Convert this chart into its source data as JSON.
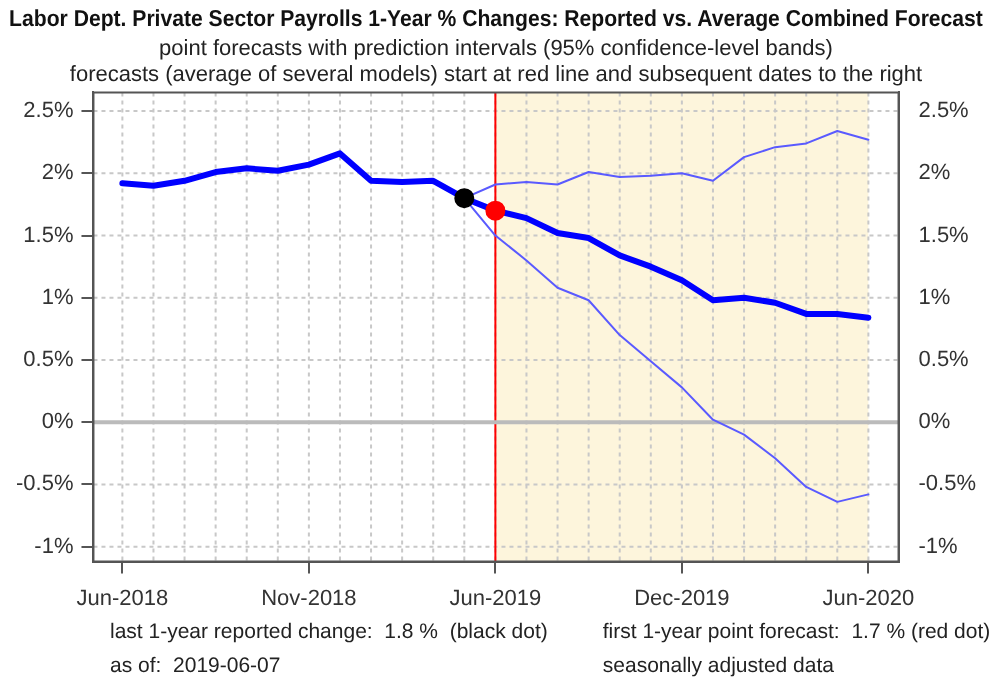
{
  "chart_data": {
    "type": "line",
    "title": "Labor Dept. Private Sector Payrolls 1-Year % Changes: Reported vs. Average Combined Forecast",
    "subtitle": "point forecasts with prediction intervals (95% confidence-level bands)\nforecasts (average of several models) start at red line and subsequent dates to the right",
    "categories": [
      "Jun-2018",
      null,
      null,
      null,
      null,
      null,
      "Nov-2018",
      null,
      null,
      null,
      null,
      null,
      "Jun-2019",
      null,
      null,
      null,
      null,
      null,
      "Dec-2019",
      null,
      null,
      null,
      null,
      null,
      "Jun-2020"
    ],
    "series": [
      {
        "color": "#0000ff",
        "values": [
          1.92,
          1.9,
          1.94,
          2.01,
          2.04,
          2.02,
          2.07,
          2.16,
          1.94,
          1.93,
          1.94,
          1.8,
          1.7,
          1.64,
          1.52,
          1.48,
          1.34,
          1.25,
          1.14,
          0.98,
          1.0,
          0.96,
          0.87,
          0.87,
          0.84
        ]
      },
      {
        "color": "#5a5aff",
        "values": [
          null,
          null,
          null,
          null,
          null,
          null,
          null,
          null,
          null,
          null,
          null,
          1.8,
          1.91,
          1.93,
          1.91,
          2.01,
          1.97,
          1.98,
          2.0,
          1.94,
          2.13,
          2.21,
          2.24,
          2.34,
          2.27
        ]
      },
      {
        "color": "#5a5aff",
        "values": [
          null,
          null,
          null,
          null,
          null,
          null,
          null,
          null,
          null,
          null,
          null,
          1.8,
          1.5,
          1.3,
          1.08,
          0.98,
          0.7,
          0.49,
          0.28,
          0.02,
          -0.1,
          -0.29,
          -0.52,
          -0.64,
          -0.58
        ]
      },
      {
        "type": "scatter",
        "marker": "circle",
        "color": "#000000",
        "values": [
          null,
          null,
          null,
          null,
          null,
          null,
          null,
          null,
          null,
          null,
          null,
          1.8,
          null,
          null,
          null,
          null,
          null,
          null,
          null,
          null,
          null,
          null,
          null,
          null,
          null
        ]
      },
      {
        "type": "scatter",
        "marker": "circle",
        "color": "#ff0000",
        "values": [
          null,
          null,
          null,
          null,
          null,
          null,
          null,
          null,
          null,
          null,
          null,
          null,
          1.7,
          null,
          null,
          null,
          null,
          null,
          null,
          null,
          null,
          null,
          null,
          null,
          null
        ]
      }
    ],
    "ylim": [
      -1.12,
      2.65
    ],
    "yticks": [
      {
        "value": -1,
        "label": "-1%"
      },
      {
        "value": -0.5,
        "label": "-0.5%"
      },
      {
        "value": 0,
        "label": "0%"
      },
      {
        "value": 0.5,
        "label": "0.5%"
      },
      {
        "value": 1,
        "label": "1%"
      },
      {
        "value": 1.5,
        "label": "1.5%"
      },
      {
        "value": 2,
        "label": "2%"
      },
      {
        "value": 2.5,
        "label": "2.5%"
      }
    ],
    "y2lim": [
      -1.12,
      2.65
    ],
    "y2ticks": [
      {
        "value": -1,
        "label": "-1%"
      },
      {
        "value": -0.5,
        "label": "-0.5%"
      },
      {
        "value": 0,
        "label": "0%"
      },
      {
        "value": 0.5,
        "label": "0.5%"
      },
      {
        "value": 1,
        "label": "1%"
      },
      {
        "value": 1.5,
        "label": "1.5%"
      },
      {
        "value": 2,
        "label": "2%"
      },
      {
        "value": 2.5,
        "label": "2.5%"
      }
    ],
    "ref_lines": [
      {
        "axis": "x",
        "value": "Jun-2019",
        "color": "#ff0000"
      },
      {
        "axis": "y",
        "value": 0,
        "color": "#bbbbbb"
      }
    ],
    "bands": [
      {
        "axis": "x",
        "from": "Jun-2019",
        "to": "Jun-2020",
        "color": "#fdf5dc"
      }
    ],
    "grid": true,
    "legend": false,
    "line_style": "solid",
    "annotations": [
      "last 1-year reported change:  1.8 %  (black dot)",
      "first 1-year point forecast:  1.7 % (red dot)",
      "as of:  2019-06-07",
      "seasonally adjusted data"
    ]
  }
}
